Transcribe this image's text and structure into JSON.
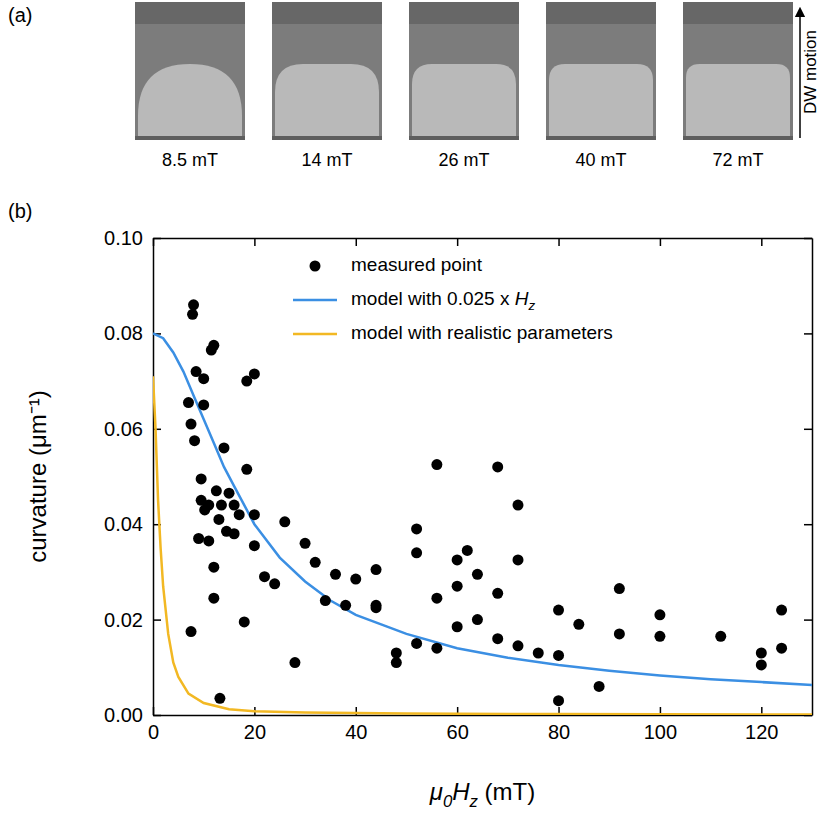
{
  "panel_a": {
    "letter": "(a)",
    "images": [
      "8.5 mT",
      "14 mT",
      "26 mT",
      "40 mT",
      "72 mT"
    ],
    "arrow_label": "DW motion"
  },
  "chart_data": {
    "letter": "(b)",
    "type": "scatter",
    "xlabel": [
      {
        "text": "μ",
        "style": "italic"
      },
      {
        "text": "0",
        "style": "sub"
      },
      {
        "text": "H",
        "style": "italic"
      },
      {
        "text": "z",
        "style": "sub"
      },
      {
        "text": " (mT)",
        "style": "plain"
      }
    ],
    "ylabel": "curvature (μm⁻¹)",
    "xlim": [
      0,
      130
    ],
    "xticks": [
      0,
      20,
      40,
      60,
      80,
      100,
      120
    ],
    "ylim": [
      0,
      0.1
    ],
    "yticks": [
      {
        "value": 0,
        "label": "0.00"
      },
      0.02,
      0.04,
      0.06,
      0.08,
      {
        "value": 0.1,
        "label": "0.10"
      }
    ],
    "legend": "upper right",
    "series": [
      {
        "name": [
          {
            "text": "measured point",
            "style": "plain"
          }
        ],
        "type": "scatter",
        "marker": "circle",
        "color": "#000000",
        "x": [
          7,
          7.5,
          7.5,
          7.8,
          8,
          8.2,
          8.5,
          9,
          9.5,
          9.5,
          10,
          10,
          10.2,
          11,
          11,
          11.5,
          12,
          12,
          12,
          12.5,
          13,
          13.2,
          13.5,
          14,
          14.5,
          15,
          16,
          16,
          17,
          18,
          18.5,
          18.5,
          20,
          20,
          20,
          22,
          24,
          26,
          28,
          30,
          32,
          34,
          36,
          38,
          40,
          44,
          44,
          44,
          48,
          48,
          52,
          52,
          52,
          56,
          56,
          56,
          60,
          60,
          60,
          62,
          64,
          64,
          68,
          68,
          68,
          72,
          72,
          72,
          76,
          80,
          80,
          80,
          84,
          88,
          92,
          92,
          100,
          100,
          112,
          120,
          120,
          124,
          124
        ],
        "values": [
          0.0655,
          0.0175,
          0.061,
          0.084,
          0.086,
          0.0575,
          0.072,
          0.037,
          0.0495,
          0.045,
          0.065,
          0.0705,
          0.043,
          0.044,
          0.0365,
          0.0765,
          0.0775,
          0.031,
          0.0245,
          0.047,
          0.041,
          0.0035,
          0.044,
          0.056,
          0.0385,
          0.0465,
          0.038,
          0.044,
          0.042,
          0.0195,
          0.0515,
          0.07,
          0.0715,
          0.042,
          0.0355,
          0.029,
          0.0275,
          0.0405,
          0.011,
          0.036,
          0.032,
          0.024,
          0.0295,
          0.023,
          0.0285,
          0.0305,
          0.023,
          0.0225,
          0.013,
          0.011,
          0.039,
          0.034,
          0.015,
          0.0525,
          0.0245,
          0.014,
          0.0325,
          0.027,
          0.0185,
          0.0345,
          0.0295,
          0.02,
          0.052,
          0.0255,
          0.016,
          0.044,
          0.0325,
          0.0145,
          0.013,
          0.022,
          0.0125,
          0.003,
          0.019,
          0.006,
          0.0265,
          0.017,
          0.021,
          0.0165,
          0.0165,
          0.013,
          0.0105,
          0.022,
          0.014
        ]
      },
      {
        "name": [
          {
            "text": "model with 0.025 x ",
            "style": "plain"
          },
          {
            "text": "H",
            "style": "italic"
          },
          {
            "text": "z",
            "style": "sub"
          }
        ],
        "type": "line",
        "line_style": "solid",
        "color": "#3b8fe3",
        "x": [
          0,
          2,
          4,
          6,
          8,
          10,
          12,
          14,
          16,
          18,
          20,
          25,
          30,
          35,
          40,
          45,
          50,
          60,
          70,
          80,
          90,
          100,
          110,
          120,
          130
        ],
        "values": [
          0.08,
          0.079,
          0.076,
          0.072,
          0.067,
          0.062,
          0.057,
          0.052,
          0.048,
          0.044,
          0.04,
          0.033,
          0.028,
          0.024,
          0.021,
          0.019,
          0.017,
          0.014,
          0.012,
          0.0105,
          0.0093,
          0.0083,
          0.0075,
          0.0069,
          0.0063
        ]
      },
      {
        "name": [
          {
            "text": "model with realistic parameters",
            "style": "plain"
          }
        ],
        "type": "line",
        "line_style": "solid",
        "color": "#f2b823",
        "x": [
          0,
          0.5,
          1,
          1.5,
          2,
          3,
          4,
          5,
          7,
          10,
          15,
          20,
          30,
          50,
          80,
          130
        ],
        "values": [
          0.071,
          0.06,
          0.045,
          0.035,
          0.027,
          0.017,
          0.011,
          0.008,
          0.0045,
          0.0025,
          0.0012,
          0.0008,
          0.0005,
          0.0003,
          0.0002,
          0.0001
        ]
      }
    ]
  }
}
